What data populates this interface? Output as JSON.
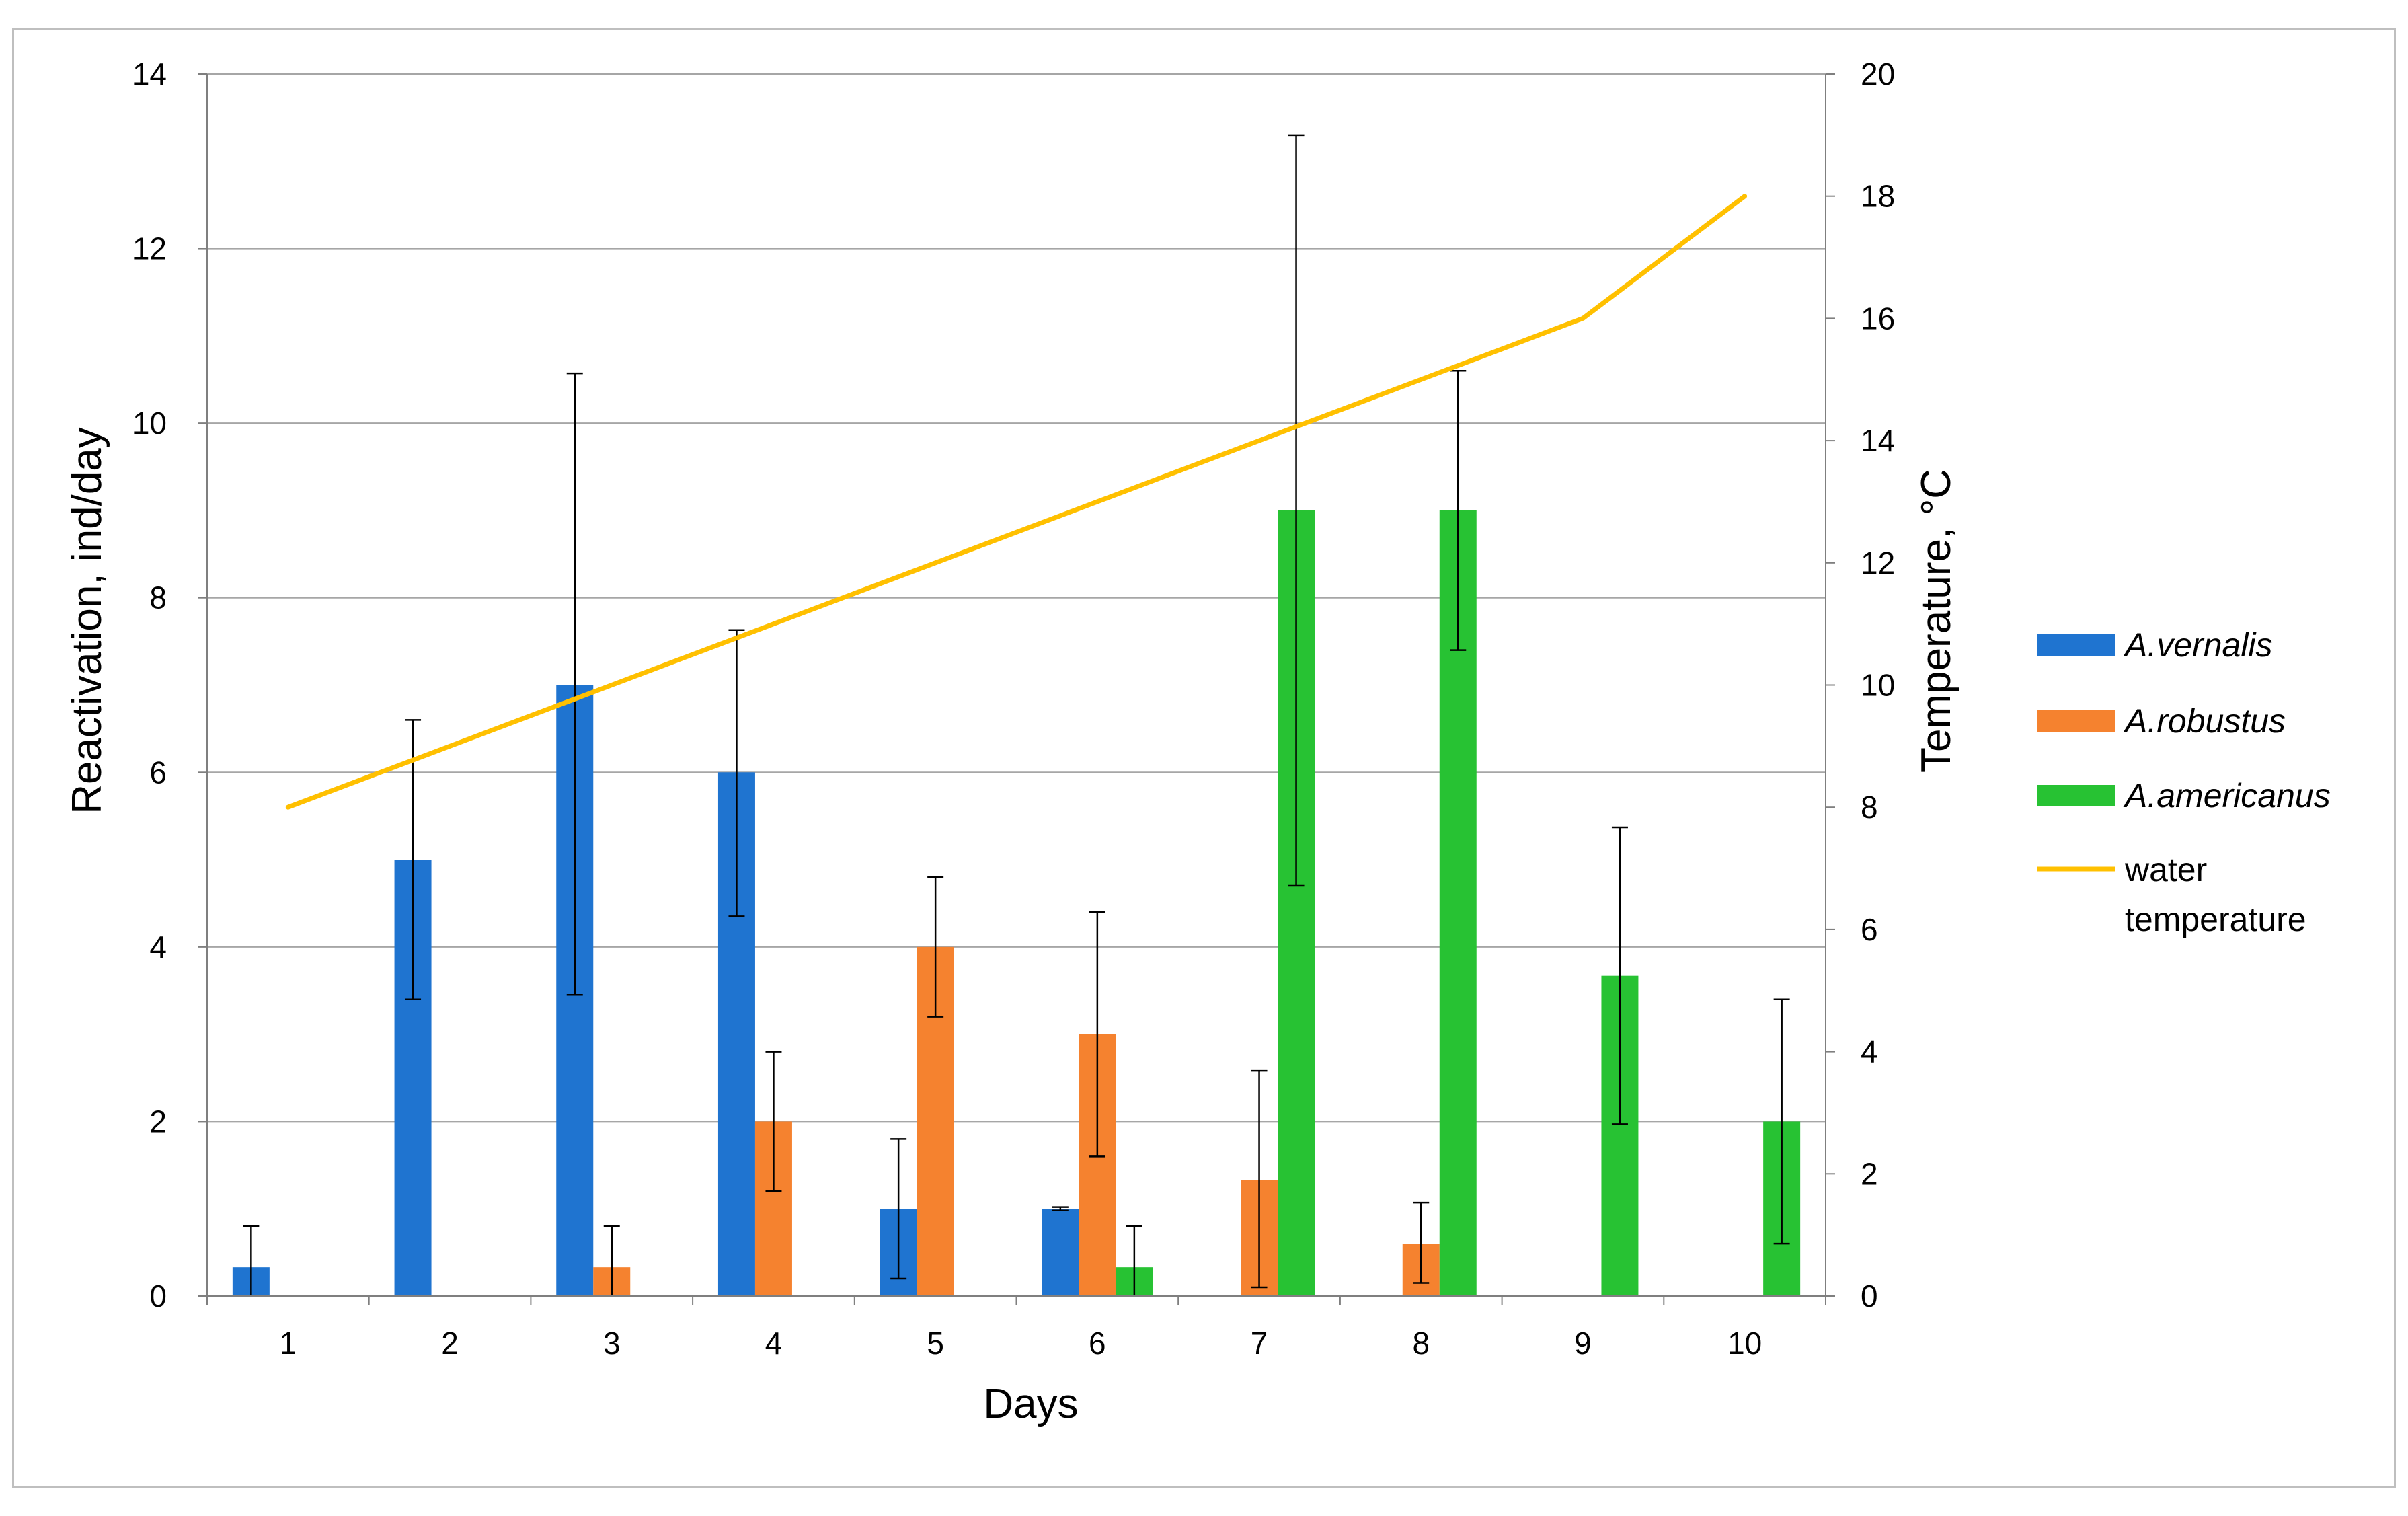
{
  "chart_data": {
    "type": "bar",
    "title": "",
    "xlabel": "Days",
    "ylabel": "Reactivation, ind/day",
    "y2label": "Temperature, °C",
    "categories": [
      "1",
      "2",
      "3",
      "4",
      "5",
      "6",
      "7",
      "8",
      "9",
      "10"
    ],
    "ylim": [
      0,
      14
    ],
    "y2lim": [
      0,
      20
    ],
    "yticks": [
      "0",
      "2",
      "4",
      "6",
      "8",
      "10",
      "12",
      "14"
    ],
    "y2ticks": [
      "0",
      "2",
      "4",
      "6",
      "8",
      "10",
      "12",
      "14",
      "16",
      "18",
      "20"
    ],
    "grid": true,
    "legend_position": "right",
    "series": [
      {
        "name": "A.vernalis",
        "kind": "bar",
        "axis": "left",
        "color": "#1f74d0",
        "values": [
          0.33,
          5,
          7,
          6,
          1,
          1,
          null,
          null,
          null,
          null
        ],
        "err_low": [
          0.0,
          3.4,
          3.45,
          4.35,
          0.2,
          0.98,
          null,
          null,
          null,
          null
        ],
        "err_high": [
          0.8,
          6.6,
          10.57,
          7.63,
          1.8,
          1.02,
          null,
          null,
          null,
          null
        ]
      },
      {
        "name": "A.robustus",
        "kind": "bar",
        "axis": "left",
        "color": "#f5822f",
        "values": [
          null,
          null,
          0.33,
          2,
          4,
          3,
          1.33,
          0.6,
          null,
          null
        ],
        "err_low": [
          null,
          null,
          0.0,
          1.2,
          3.2,
          1.6,
          0.1,
          0.15,
          null,
          null
        ],
        "err_high": [
          null,
          null,
          0.8,
          2.8,
          4.8,
          4.4,
          2.58,
          1.07,
          null,
          null
        ]
      },
      {
        "name": "A.americanus",
        "kind": "bar",
        "axis": "left",
        "color": "#27c233",
        "values": [
          null,
          null,
          null,
          null,
          null,
          0.33,
          9,
          9,
          3.67,
          2
        ],
        "err_low": [
          null,
          null,
          null,
          null,
          null,
          0.0,
          4.7,
          7.4,
          1.97,
          0.6
        ],
        "err_high": [
          null,
          null,
          null,
          null,
          null,
          0.8,
          13.3,
          10.6,
          5.37,
          3.4
        ]
      },
      {
        "name": "water temperature",
        "legend_lines": [
          "water",
          "temperature"
        ],
        "kind": "line",
        "axis": "right",
        "color": "#ffc000",
        "values": [
          8,
          9,
          10,
          11,
          12,
          13,
          14,
          15,
          16,
          18
        ]
      }
    ]
  }
}
